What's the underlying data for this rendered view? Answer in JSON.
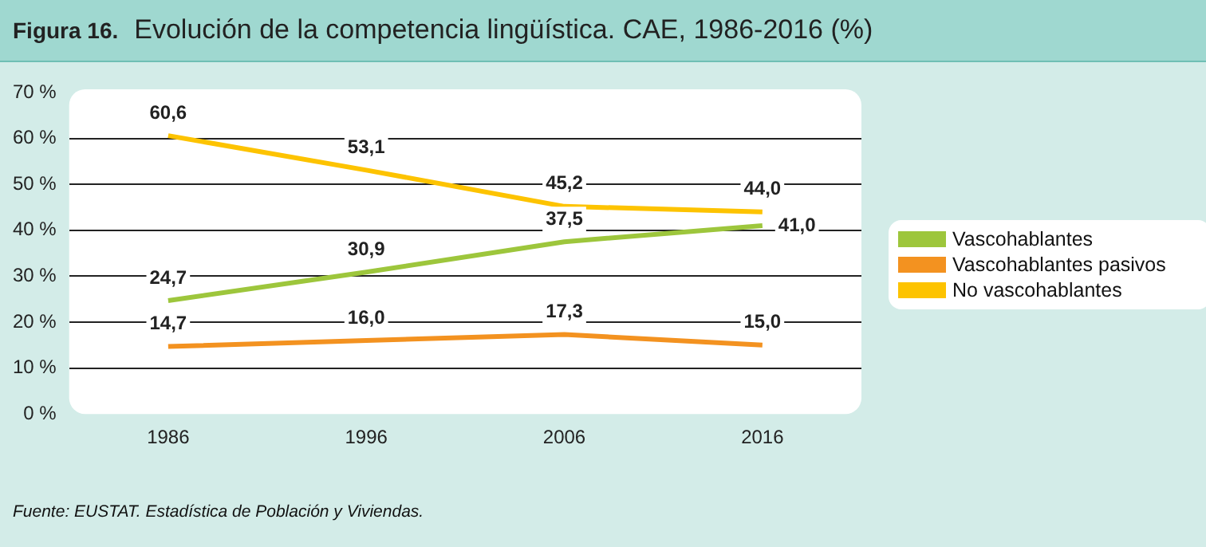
{
  "chart_data": {
    "type": "line",
    "title": "Figura 16.",
    "subtitle": "Evolución de la competencia lingüística. CAE, 1986-2016 (%)",
    "categories": [
      "1986",
      "1996",
      "2006",
      "2016"
    ],
    "series": [
      {
        "name": "Vascohablantes",
        "color": "#9dc63c",
        "values": [
          24.7,
          30.9,
          37.5,
          41.0
        ],
        "value_labels": [
          "24,7",
          "30,9",
          "37,5",
          "41,0"
        ]
      },
      {
        "name": "Vascohablantes pasivos",
        "color": "#f39220",
        "values": [
          14.7,
          16.0,
          17.3,
          15.0
        ],
        "value_labels": [
          "14,7",
          "16,0",
          "17,3",
          "15,0"
        ]
      },
      {
        "name": "No vascohablantes",
        "color": "#fdc300",
        "values": [
          60.6,
          53.1,
          45.2,
          44.0
        ],
        "value_labels": [
          "60,6",
          "53,1",
          "45,2",
          "44,0"
        ]
      }
    ],
    "ylim": [
      0,
      70
    ],
    "yticks": [
      {
        "value": 0,
        "label": "0 %"
      },
      {
        "value": 10,
        "label": "10 %"
      },
      {
        "value": 20,
        "label": "20 %"
      },
      {
        "value": 30,
        "label": "30 %"
      },
      {
        "value": 40,
        "label": "40 %"
      },
      {
        "value": 50,
        "label": "50 %"
      },
      {
        "value": 60,
        "label": "60 %"
      },
      {
        "value": 70,
        "label": "70 %"
      }
    ],
    "grid": "y",
    "legend": "right",
    "marker": "none",
    "line_style": "solid",
    "annotations": [
      "Fuente: EUSTAT. Estadística de Población y Viviendas."
    ]
  }
}
